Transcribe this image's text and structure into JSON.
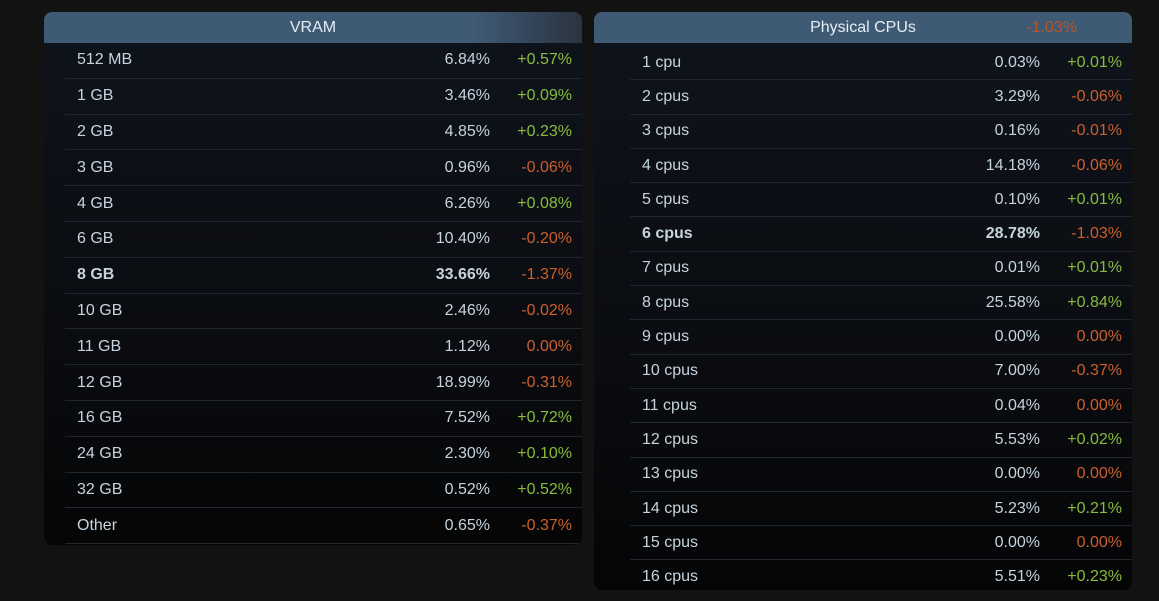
{
  "vram": {
    "title": "VRAM",
    "rows": [
      {
        "label": "512 MB",
        "pct": "6.84%",
        "chg": "+0.57%"
      },
      {
        "label": "1 GB",
        "pct": "3.46%",
        "chg": "+0.09%"
      },
      {
        "label": "2 GB",
        "pct": "4.85%",
        "chg": "+0.23%"
      },
      {
        "label": "3 GB",
        "pct": "0.96%",
        "chg": "-0.06%"
      },
      {
        "label": "4 GB",
        "pct": "6.26%",
        "chg": "+0.08%"
      },
      {
        "label": "6 GB",
        "pct": "10.40%",
        "chg": "-0.20%"
      },
      {
        "label": "8 GB",
        "pct": "33.66%",
        "chg": "-1.37%",
        "bold": true
      },
      {
        "label": "10 GB",
        "pct": "2.46%",
        "chg": "-0.02%"
      },
      {
        "label": "11 GB",
        "pct": "1.12%",
        "chg": "0.00%"
      },
      {
        "label": "12 GB",
        "pct": "18.99%",
        "chg": "-0.31%"
      },
      {
        "label": "16 GB",
        "pct": "7.52%",
        "chg": "+0.72%"
      },
      {
        "label": "24 GB",
        "pct": "2.30%",
        "chg": "+0.10%"
      },
      {
        "label": "32 GB",
        "pct": "0.52%",
        "chg": "+0.52%"
      },
      {
        "label": "Other",
        "pct": "0.65%",
        "chg": "-0.37%"
      }
    ]
  },
  "cpu": {
    "title": "Physical CPUs",
    "header_change": "-1.03%",
    "rows": [
      {
        "label": "1 cpu",
        "pct": "0.03%",
        "chg": "+0.01%"
      },
      {
        "label": "2 cpus",
        "pct": "3.29%",
        "chg": "-0.06%"
      },
      {
        "label": "3 cpus",
        "pct": "0.16%",
        "chg": "-0.01%"
      },
      {
        "label": "4 cpus",
        "pct": "14.18%",
        "chg": "-0.06%"
      },
      {
        "label": "5 cpus",
        "pct": "0.10%",
        "chg": "+0.01%"
      },
      {
        "label": "6 cpus",
        "pct": "28.78%",
        "chg": "-1.03%",
        "bold": true
      },
      {
        "label": "7 cpus",
        "pct": "0.01%",
        "chg": "+0.01%"
      },
      {
        "label": "8 cpus",
        "pct": "25.58%",
        "chg": "+0.84%"
      },
      {
        "label": "9 cpus",
        "pct": "0.00%",
        "chg": "0.00%"
      },
      {
        "label": "10 cpus",
        "pct": "7.00%",
        "chg": "-0.37%"
      },
      {
        "label": "11 cpus",
        "pct": "0.04%",
        "chg": "0.00%"
      },
      {
        "label": "12 cpus",
        "pct": "5.53%",
        "chg": "+0.02%"
      },
      {
        "label": "13 cpus",
        "pct": "0.00%",
        "chg": "0.00%"
      },
      {
        "label": "14 cpus",
        "pct": "5.23%",
        "chg": "+0.21%"
      },
      {
        "label": "15 cpus",
        "pct": "0.00%",
        "chg": "0.00%"
      },
      {
        "label": "16 cpus",
        "pct": "5.51%",
        "chg": "+0.23%"
      }
    ]
  },
  "colors": {
    "positive": "#86bd3c",
    "negative": "#cc5f2c",
    "header": "#3f5a75"
  }
}
